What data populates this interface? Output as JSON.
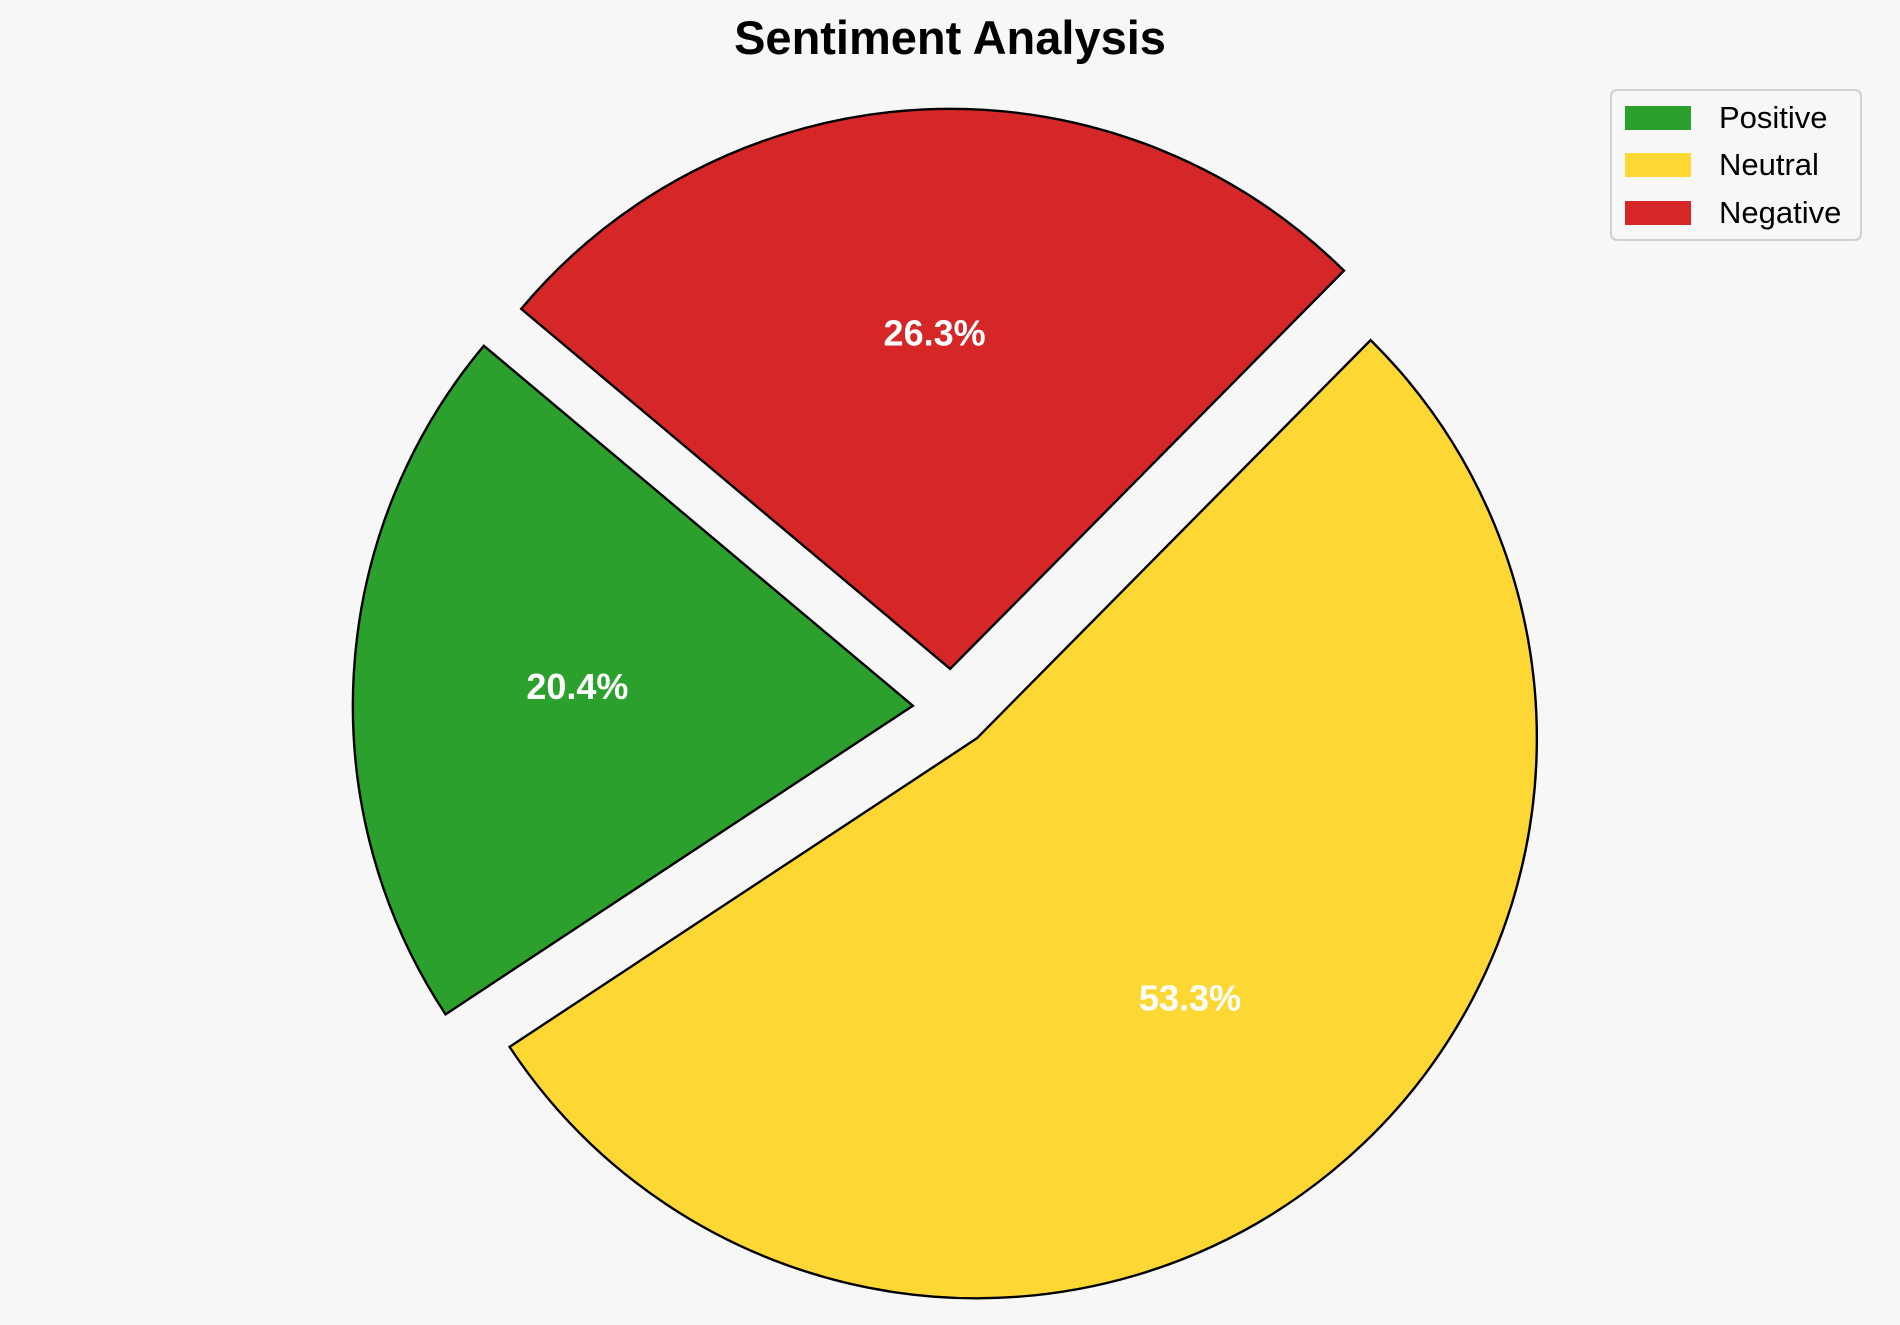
{
  "chart_data": {
    "type": "pie",
    "title": "Sentiment Analysis",
    "categories": [
      "Positive",
      "Neutral",
      "Negative"
    ],
    "values": [
      20.4,
      53.3,
      26.3
    ],
    "value_labels": [
      "20.4%",
      "53.3%",
      "26.3%"
    ],
    "colors": [
      "#2ca02c",
      "#fdd835",
      "#d62728"
    ],
    "exploded": true,
    "legend_position": "top-right"
  }
}
